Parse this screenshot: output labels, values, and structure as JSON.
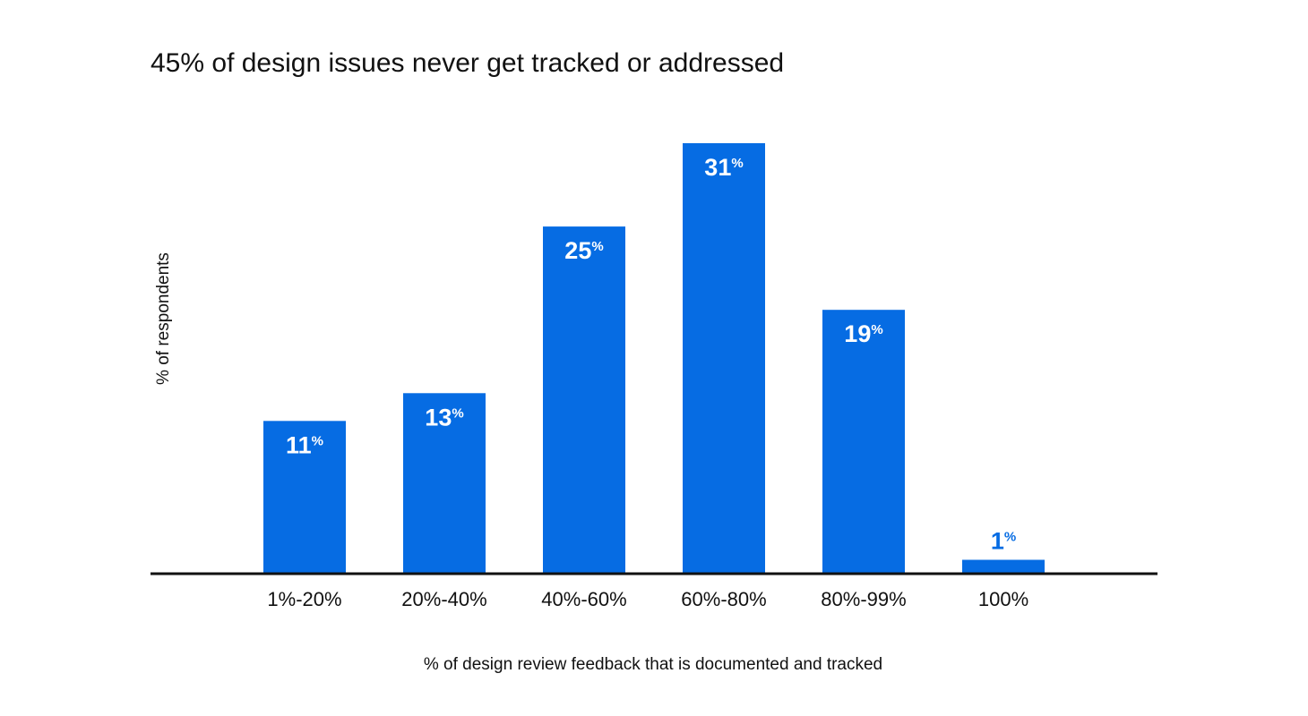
{
  "chart_data": {
    "type": "bar",
    "title": "45% of design issues never get tracked or addressed",
    "xlabel": "% of design review feedback that is documented and tracked",
    "ylabel": "% of respondents",
    "categories": [
      "1%-20%",
      "20%-40%",
      "40%-60%",
      "60%-80%",
      "80%-99%",
      "100%"
    ],
    "values": [
      11,
      13,
      25,
      31,
      19,
      1
    ],
    "value_labels": [
      "11",
      "13",
      "25",
      "31",
      "19",
      "1"
    ],
    "value_suffix": "%",
    "ylim": [
      0,
      31
    ],
    "grid": false,
    "legend": "none"
  },
  "colors": {
    "bar": "#066ce3",
    "label_inside": "#ffffff",
    "label_outside": "#066ce3",
    "axis": "#111111"
  }
}
